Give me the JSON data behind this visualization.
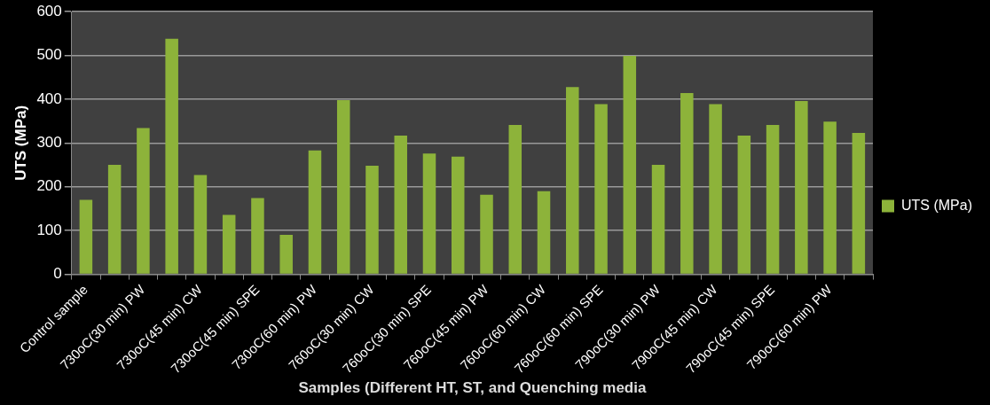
{
  "chart_data": {
    "type": "bar",
    "xlabel": "Samples (Different HT, ST, and Quenching media",
    "ylabel": "UTS (MPa)",
    "categories": [
      "Control sample",
      null,
      "730oC(30 min) PW",
      null,
      "730oC(45 min) CW",
      null,
      "730oC(45 min) SPE",
      null,
      "730oC(60 min) PW",
      null,
      "760oC(30 min) CW",
      null,
      "760oC(30 min) SPE",
      null,
      "760oC(45 min) PW",
      null,
      "760oC(60 min) CW",
      null,
      "760oC(60 min) SPE",
      null,
      "790oC(30 min) PW",
      null,
      "790oC(45 min) CW",
      null,
      "790oC(45 min) SPE",
      null,
      "790oC(60 min) PW",
      null
    ],
    "series": [
      {
        "name": "UTS (MPa)",
        "color": "#8db33a",
        "values": [
          170,
          250,
          334,
          538,
          227,
          136,
          174,
          90,
          283,
          398,
          248,
          317,
          276,
          269,
          182,
          341,
          190,
          428,
          389,
          499,
          250,
          414,
          389,
          317,
          341,
          396,
          349,
          323
        ]
      }
    ],
    "ylim": [
      0,
      600
    ],
    "yticks": [
      0,
      100,
      200,
      300,
      400,
      500,
      600
    ],
    "grid": "y",
    "legend": "right"
  }
}
